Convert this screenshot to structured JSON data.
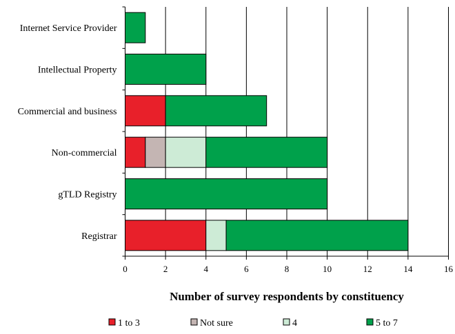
{
  "chart_data": {
    "type": "bar",
    "orientation": "horizontal",
    "stacked": true,
    "categories": [
      "Internet Service Provider",
      "Intellectual Property",
      "Commercial and business",
      "Non-commercial",
      "gTLD Registry",
      "Registrar"
    ],
    "series": [
      {
        "name": "1 to 3",
        "color": "#e8202a",
        "values": [
          0,
          0,
          2,
          1,
          0,
          4
        ]
      },
      {
        "name": "Not sure",
        "color": "#c4b5b3",
        "values": [
          0,
          0,
          0,
          1,
          0,
          0
        ]
      },
      {
        "name": "4",
        "color": "#cdebd6",
        "values": [
          0,
          0,
          0,
          2,
          0,
          1
        ]
      },
      {
        "name": "5 to 7",
        "color": "#00a14b",
        "values": [
          1,
          4,
          5,
          6,
          10,
          9
        ]
      }
    ],
    "xlabel": "Number of survey respondents by constituency",
    "ylabel": "",
    "xlim": [
      0,
      16
    ],
    "xticks": [
      "0",
      "2",
      "4",
      "6",
      "8",
      "10",
      "12",
      "14",
      "16"
    ],
    "grid": true,
    "legend_position": "bottom"
  }
}
